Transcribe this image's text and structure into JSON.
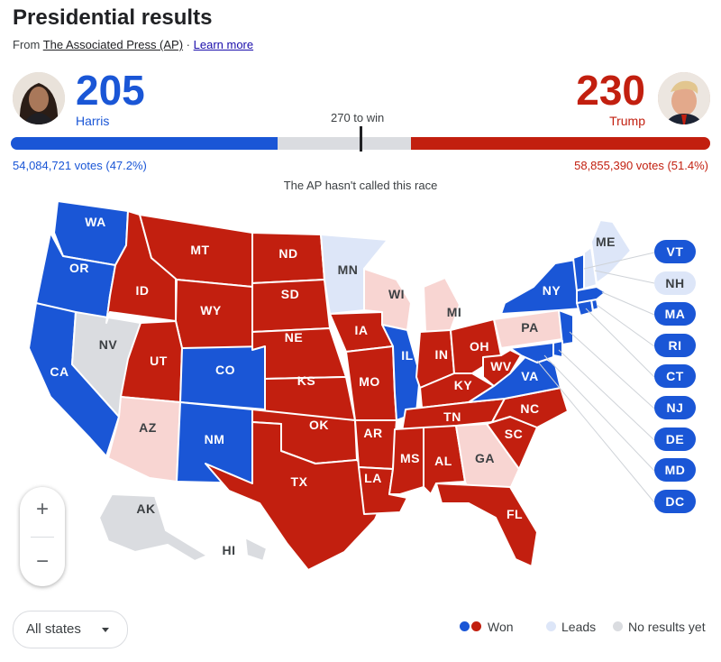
{
  "header": {
    "title": "Presidential results",
    "source_prefix": "From ",
    "source_name": "The Associated Press (AP)",
    "source_sep": " · ",
    "learn_more": "Learn more"
  },
  "candidates": {
    "harris": {
      "name": "Harris",
      "electoral_votes": "205",
      "votes_text": "54,084,721 votes (47.2%)",
      "color": "#1a56d6",
      "ev_fraction": 0.381
    },
    "trump": {
      "name": "Trump",
      "electoral_votes": "230",
      "votes_text": "58,855,390 votes (51.4%)",
      "color": "#c21f0f",
      "ev_fraction": 0.428
    }
  },
  "threshold_label": "270 to win",
  "race_status": "The AP hasn't called this race",
  "map": {
    "states": [
      {
        "abbr": "WA",
        "status": "won-dem"
      },
      {
        "abbr": "OR",
        "status": "won-dem"
      },
      {
        "abbr": "CA",
        "status": "won-dem"
      },
      {
        "abbr": "NV",
        "status": "no-results"
      },
      {
        "abbr": "ID",
        "status": "won-rep"
      },
      {
        "abbr": "MT",
        "status": "won-rep"
      },
      {
        "abbr": "WY",
        "status": "won-rep"
      },
      {
        "abbr": "UT",
        "status": "won-rep"
      },
      {
        "abbr": "AZ",
        "status": "leads-rep"
      },
      {
        "abbr": "CO",
        "status": "won-dem"
      },
      {
        "abbr": "NM",
        "status": "won-dem"
      },
      {
        "abbr": "ND",
        "status": "won-rep"
      },
      {
        "abbr": "SD",
        "status": "won-rep"
      },
      {
        "abbr": "NE",
        "status": "won-rep"
      },
      {
        "abbr": "KS",
        "status": "won-rep"
      },
      {
        "abbr": "OK",
        "status": "won-rep"
      },
      {
        "abbr": "TX",
        "status": "won-rep"
      },
      {
        "abbr": "MN",
        "status": "leads-dem"
      },
      {
        "abbr": "IA",
        "status": "won-rep"
      },
      {
        "abbr": "MO",
        "status": "won-rep"
      },
      {
        "abbr": "AR",
        "status": "won-rep"
      },
      {
        "abbr": "LA",
        "status": "won-rep"
      },
      {
        "abbr": "WI",
        "status": "leads-rep"
      },
      {
        "abbr": "IL",
        "status": "won-dem"
      },
      {
        "abbr": "MI",
        "status": "leads-rep"
      },
      {
        "abbr": "IN",
        "status": "won-rep"
      },
      {
        "abbr": "OH",
        "status": "won-rep"
      },
      {
        "abbr": "KY",
        "status": "won-rep"
      },
      {
        "abbr": "TN",
        "status": "won-rep"
      },
      {
        "abbr": "MS",
        "status": "won-rep"
      },
      {
        "abbr": "AL",
        "status": "won-rep"
      },
      {
        "abbr": "GA",
        "status": "leads-rep"
      },
      {
        "abbr": "FL",
        "status": "won-rep"
      },
      {
        "abbr": "SC",
        "status": "won-rep"
      },
      {
        "abbr": "NC",
        "status": "won-rep"
      },
      {
        "abbr": "VA",
        "status": "won-dem"
      },
      {
        "abbr": "WV",
        "status": "won-rep"
      },
      {
        "abbr": "PA",
        "status": "leads-rep"
      },
      {
        "abbr": "NY",
        "status": "won-dem"
      },
      {
        "abbr": "ME",
        "status": "leads-dem"
      },
      {
        "abbr": "AK",
        "status": "no-results"
      },
      {
        "abbr": "HI",
        "status": "no-results"
      }
    ],
    "small_states": [
      {
        "abbr": "VT",
        "status": "won-dem"
      },
      {
        "abbr": "NH",
        "status": "leads-dem"
      },
      {
        "abbr": "MA",
        "status": "won-dem"
      },
      {
        "abbr": "RI",
        "status": "won-dem"
      },
      {
        "abbr": "CT",
        "status": "won-dem"
      },
      {
        "abbr": "NJ",
        "status": "won-dem"
      },
      {
        "abbr": "DE",
        "status": "won-dem"
      },
      {
        "abbr": "MD",
        "status": "won-dem"
      },
      {
        "abbr": "DC",
        "status": "won-dem"
      }
    ],
    "colors": {
      "won-dem": "#1a56d6",
      "won-rep": "#c21f0f",
      "leads-dem": "#dde6f8",
      "leads-rep": "#f8d5d2",
      "no-results": "#dadce0"
    }
  },
  "zoom": {
    "in": "+",
    "out": "−"
  },
  "filter": {
    "selected": "All states"
  },
  "legend": {
    "won": "Won",
    "leads": "Leads",
    "no_results": "No results yet"
  }
}
